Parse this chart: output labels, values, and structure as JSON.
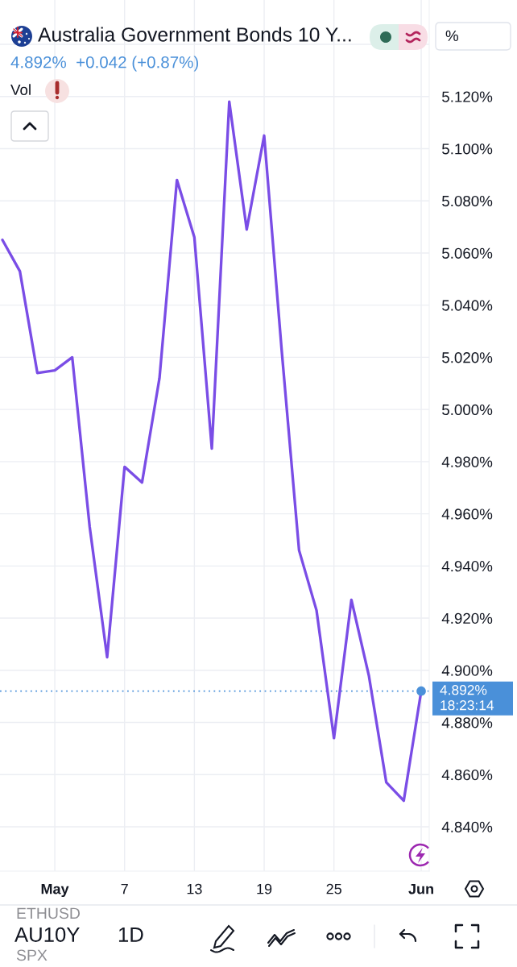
{
  "chart_data": {
    "type": "line",
    "title": "Australia Government Bonds 10 Y...",
    "subtitle": "4.892%  +0.042 (+0.87%)",
    "categories": [
      null,
      null,
      null,
      "May",
      null,
      null,
      null,
      "7",
      null,
      null,
      null,
      "13",
      null,
      null,
      null,
      "19",
      null,
      null,
      null,
      "25",
      null,
      null,
      null,
      null,
      "Jun"
    ],
    "series": [
      {
        "color": "#7a4de6",
        "values": [
          5.065,
          5.053,
          5.014,
          5.015,
          5.02,
          4.955,
          4.905,
          4.978,
          4.972,
          5.012,
          5.088,
          5.066,
          4.985,
          5.118,
          5.069,
          5.105,
          5.023,
          4.946,
          4.923,
          4.874,
          4.927,
          4.898,
          4.857,
          4.85,
          4.892
        ]
      },
      {
        "type": "scatter",
        "color": "#4a90d9",
        "values": [
          null,
          null,
          null,
          null,
          null,
          null,
          null,
          null,
          null,
          null,
          null,
          null,
          null,
          null,
          null,
          null,
          null,
          null,
          null,
          null,
          null,
          null,
          null,
          null,
          4.892
        ]
      }
    ],
    "ylim": [
      4.823,
      5.157
    ],
    "yticks": [
      {
        "value": 4.84,
        "label": "4.840%"
      },
      {
        "value": 4.86,
        "label": "4.860%"
      },
      {
        "value": 4.88,
        "label": "4.880%"
      },
      {
        "value": 4.9,
        "label": "4.900%"
      },
      {
        "value": 4.92,
        "label": "4.920%"
      },
      {
        "value": 4.94,
        "label": "4.940%"
      },
      {
        "value": 4.96,
        "label": "4.960%"
      },
      {
        "value": 4.98,
        "label": "4.980%"
      },
      {
        "value": 5.0,
        "label": "5.000%"
      },
      {
        "value": 5.02,
        "label": "5.020%"
      },
      {
        "value": 5.04,
        "label": "5.040%"
      },
      {
        "value": 5.06,
        "label": "5.060%"
      },
      {
        "value": 5.08,
        "label": "5.080%"
      },
      {
        "value": 5.1,
        "label": "5.100%"
      },
      {
        "value": 5.12,
        "label": "5.120%"
      },
      {
        "value": 5.14,
        "label": null
      }
    ],
    "grid": true,
    "line_style": "solid",
    "ref_lines": [
      {
        "axis": "y",
        "value": 4.892,
        "label": "4.892%",
        "color": "#4a90d9",
        "line_style": "dotted"
      }
    ],
    "annotations": [
      "Vol",
      "%",
      "18:23:14",
      "AU10Y",
      "1D",
      "ETHUSD",
      "SPX"
    ]
  }
}
